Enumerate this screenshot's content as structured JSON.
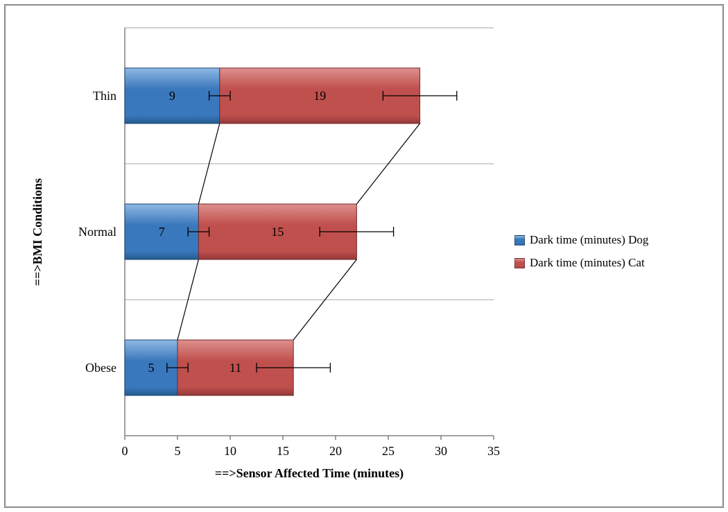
{
  "frame": {
    "border_color": "#8a8a8a",
    "background": "#ffffff"
  },
  "chart_data": {
    "type": "bar",
    "orientation": "horizontal",
    "stacked": true,
    "title": "",
    "categories": [
      "Thin",
      "Normal",
      "Obese"
    ],
    "series": [
      {
        "name": "Dark time (minutes) Dog",
        "values": [
          9,
          7,
          5
        ],
        "error_plus_minus": 1,
        "color": "#3a78bd",
        "color_light": "#8fb9e4",
        "color_dark": "#24598f",
        "stroke": "#1d476f"
      },
      {
        "name": "Dark time (minutes) Cat",
        "values": [
          19,
          15,
          11
        ],
        "error_plus_minus": 3.5,
        "color": "#c0504d",
        "color_light": "#dd908d",
        "color_dark": "#94383a",
        "stroke": "#732a2a"
      }
    ],
    "stack_totals": [
      28,
      22,
      16
    ],
    "data_labels": {
      "dog": [
        "9",
        "7",
        "5"
      ],
      "cat": [
        "19",
        "15",
        "11"
      ]
    },
    "xlabel": "==>Sensor Affected Time (minutes)",
    "ylabel": "==>BMI Conditions",
    "xlim": [
      0,
      35
    ],
    "xticks": [
      "0",
      "5",
      "10",
      "15",
      "20",
      "25",
      "30",
      "35"
    ],
    "legend_position": "right",
    "grid": "horizontal-category-boundaries",
    "series_connector_lines": true,
    "axis_color": "#808080",
    "gridline_color": "#a6a6a6",
    "connector_color": "#000000"
  }
}
